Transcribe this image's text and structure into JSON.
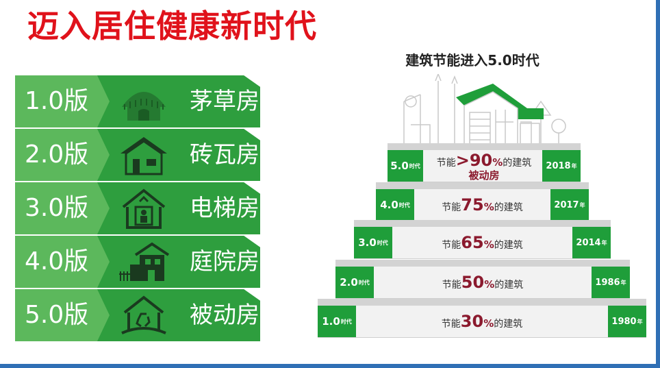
{
  "title": "迈入居住健康新时代",
  "versions": [
    {
      "label": "1.0版",
      "name": "茅草房",
      "icon": "thatched-hut-icon"
    },
    {
      "label": "2.0版",
      "name": "砖瓦房",
      "icon": "brick-house-icon"
    },
    {
      "label": "3.0版",
      "name": "电梯房",
      "icon": "elevator-house-icon"
    },
    {
      "label": "4.0版",
      "name": "庭院房",
      "icon": "courtyard-house-icon"
    },
    {
      "label": "5.0版",
      "name": "被动房",
      "icon": "passive-house-recycle-icon"
    }
  ],
  "pyramid": {
    "title": "建筑节能进入5.0时代",
    "steps": [
      {
        "era_num": "5.0",
        "era_suffix": "时代",
        "prefix": "节能",
        "pct": ">90",
        "pct_sym": "%",
        "suffix": "的建筑",
        "sub": "被动房",
        "year_num": "2018",
        "year_suffix": "年"
      },
      {
        "era_num": "4.0",
        "era_suffix": "时代",
        "prefix": "节能",
        "pct": "75",
        "pct_sym": "%",
        "suffix": "的建筑",
        "sub": "",
        "year_num": "2017",
        "year_suffix": "年"
      },
      {
        "era_num": "3.0",
        "era_suffix": "时代",
        "prefix": "节能",
        "pct": "65",
        "pct_sym": "%",
        "suffix": "的建筑",
        "sub": "",
        "year_num": "2014",
        "year_suffix": "年"
      },
      {
        "era_num": "2.0",
        "era_suffix": "时代",
        "prefix": "节能",
        "pct": "50",
        "pct_sym": "%",
        "suffix": "的建筑",
        "sub": "",
        "year_num": "1986",
        "year_suffix": "年"
      },
      {
        "era_num": "1.0",
        "era_suffix": "时代",
        "prefix": "节能",
        "pct": "30",
        "pct_sym": "%",
        "suffix": "的建筑",
        "sub": "",
        "year_num": "1980",
        "year_suffix": "年"
      }
    ]
  },
  "colors": {
    "title_red": "#e0121b",
    "green_dark": "#2e9e3e",
    "green_light": "#5cb85c",
    "accent_maroon": "#8b1a2e"
  }
}
